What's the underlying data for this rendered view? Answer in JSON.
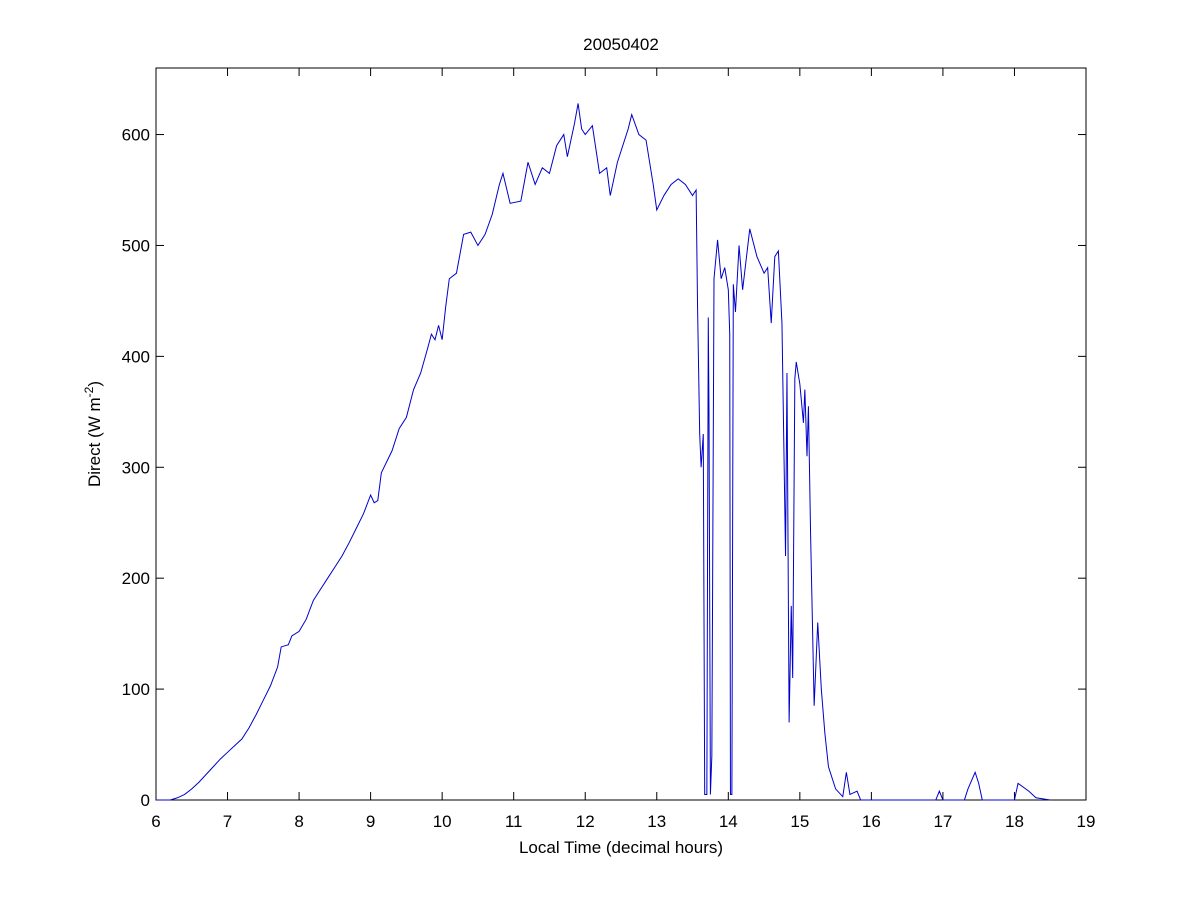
{
  "chart_data": {
    "type": "line",
    "title": "20050402",
    "xlabel": "Local Time (decimal hours)",
    "ylabel": [
      "Direct (W m",
      "-2",
      ")"
    ],
    "color": "#0000cc",
    "xlim": [
      6,
      19
    ],
    "ylim": [
      0,
      660
    ],
    "xticks": [
      6,
      7,
      8,
      9,
      10,
      11,
      12,
      13,
      14,
      15,
      16,
      17,
      18,
      19
    ],
    "yticks": [
      0,
      100,
      200,
      300,
      400,
      500,
      600
    ],
    "grid": false,
    "x": [
      6.0,
      6.2,
      6.3,
      6.4,
      6.5,
      6.6,
      6.7,
      6.8,
      6.9,
      7.0,
      7.1,
      7.2,
      7.3,
      7.4,
      7.5,
      7.6,
      7.7,
      7.75,
      7.85,
      7.9,
      8.0,
      8.1,
      8.2,
      8.3,
      8.4,
      8.5,
      8.6,
      8.7,
      8.8,
      8.9,
      9.0,
      9.05,
      9.1,
      9.15,
      9.3,
      9.4,
      9.5,
      9.6,
      9.7,
      9.8,
      9.85,
      9.9,
      9.95,
      10.0,
      10.05,
      10.1,
      10.2,
      10.3,
      10.4,
      10.5,
      10.6,
      10.7,
      10.8,
      10.85,
      10.95,
      11.1,
      11.2,
      11.3,
      11.4,
      11.5,
      11.6,
      11.7,
      11.75,
      11.85,
      11.9,
      11.95,
      12.0,
      12.1,
      12.2,
      12.3,
      12.35,
      12.45,
      12.6,
      12.65,
      12.75,
      12.85,
      12.95,
      13.0,
      13.1,
      13.2,
      13.3,
      13.4,
      13.5,
      13.55,
      13.57,
      13.6,
      13.62,
      13.65,
      13.67,
      13.7,
      13.72,
      13.73,
      13.75,
      13.77,
      13.8,
      13.85,
      13.9,
      13.95,
      14.0,
      14.02,
      14.03,
      14.05,
      14.07,
      14.1,
      14.15,
      14.2,
      14.3,
      14.4,
      14.5,
      14.55,
      14.6,
      14.65,
      14.7,
      14.75,
      14.8,
      14.82,
      14.85,
      14.88,
      14.9,
      14.93,
      14.95,
      15.0,
      15.05,
      15.07,
      15.1,
      15.12,
      15.15,
      15.2,
      15.25,
      15.3,
      15.35,
      15.4,
      15.5,
      15.6,
      15.65,
      15.7,
      15.8,
      15.85,
      16.0,
      16.9,
      16.95,
      17.0,
      17.3,
      17.35,
      17.45,
      17.5,
      17.55,
      18.0,
      18.05,
      18.2,
      18.3,
      18.5
    ],
    "values": [
      0,
      0,
      2,
      5,
      10,
      16,
      23,
      30,
      37,
      43,
      49,
      55,
      65,
      77,
      90,
      103,
      120,
      138,
      140,
      148,
      152,
      163,
      180,
      190,
      200,
      210,
      220,
      232,
      245,
      258,
      275,
      268,
      270,
      295,
      315,
      335,
      345,
      370,
      385,
      408,
      420,
      415,
      428,
      415,
      445,
      470,
      475,
      510,
      512,
      500,
      510,
      528,
      555,
      565,
      538,
      540,
      575,
      555,
      570,
      565,
      590,
      600,
      580,
      610,
      628,
      605,
      600,
      608,
      565,
      570,
      545,
      575,
      605,
      618,
      600,
      595,
      555,
      532,
      545,
      555,
      560,
      555,
      545,
      550,
      445,
      330,
      300,
      330,
      5,
      5,
      435,
      350,
      5,
      40,
      470,
      505,
      470,
      480,
      460,
      420,
      5,
      5,
      465,
      440,
      500,
      460,
      515,
      490,
      475,
      480,
      430,
      490,
      495,
      430,
      220,
      385,
      70,
      175,
      110,
      380,
      395,
      375,
      340,
      370,
      310,
      355,
      240,
      85,
      160,
      100,
      60,
      30,
      10,
      3,
      25,
      5,
      8,
      0,
      0,
      0,
      8,
      0,
      0,
      10,
      25,
      15,
      0,
      0,
      15,
      8,
      2,
      0
    ]
  }
}
